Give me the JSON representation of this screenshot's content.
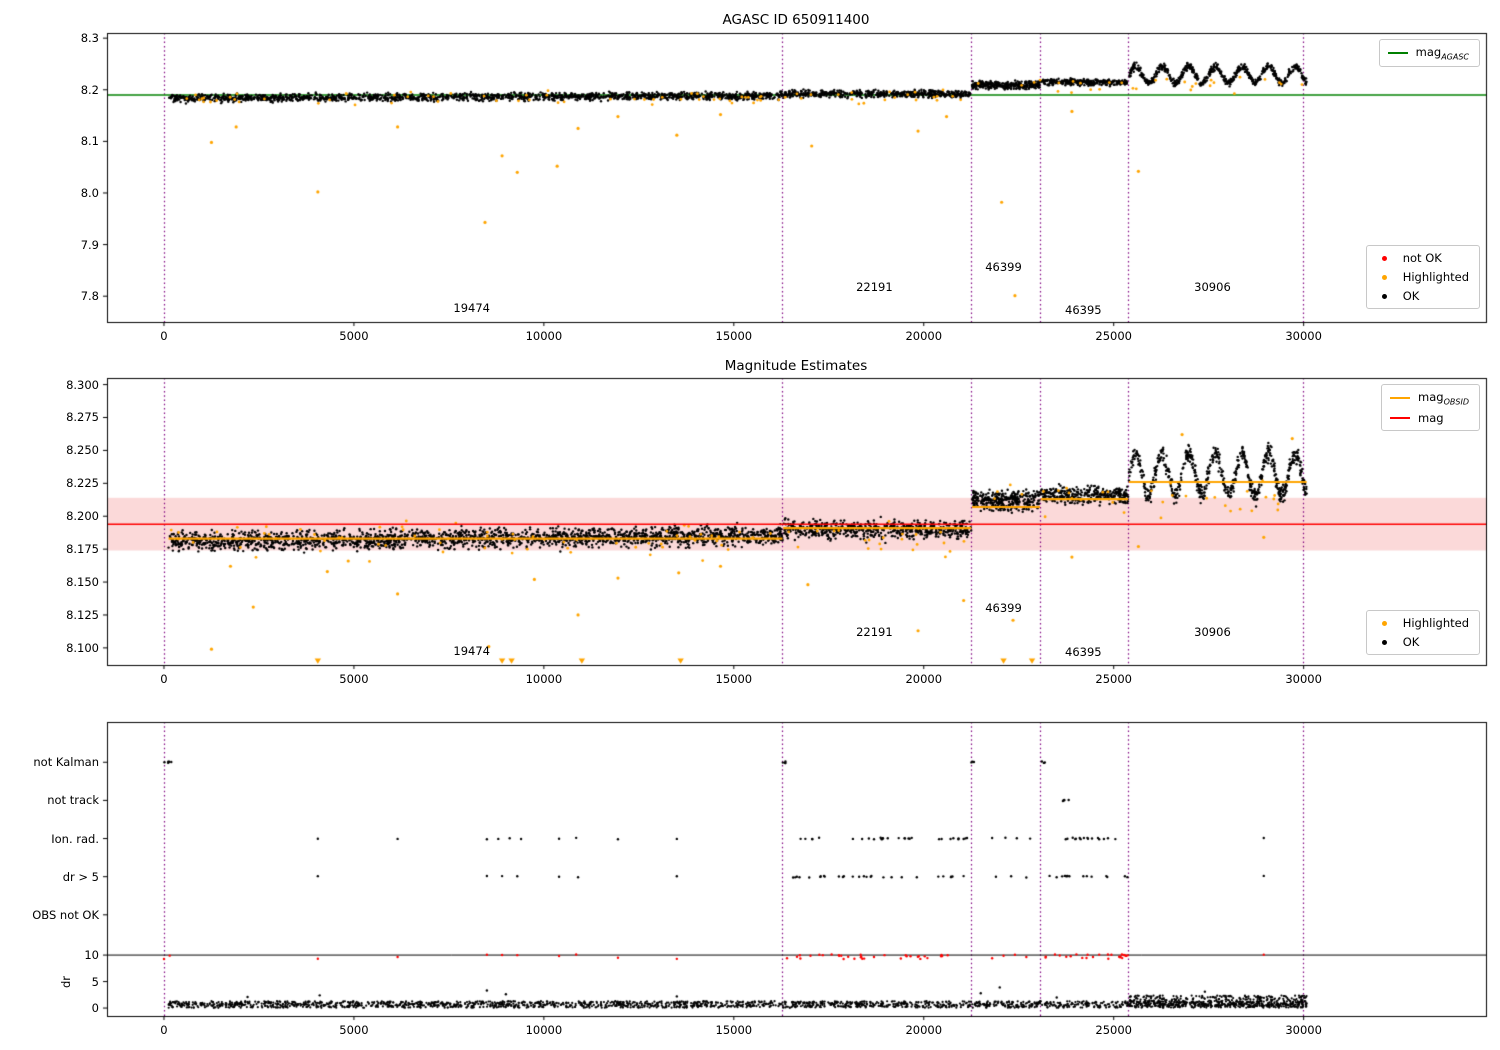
{
  "colors": {
    "ok": "#000000",
    "highlighted": "#ffa500",
    "not_ok": "#ff0000",
    "mag_agasc_line": "#008000",
    "mag_obsid_line": "#ffa500",
    "mag_line": "#ff0000",
    "mag_band": "#fbd9d9",
    "obsid_divider": "#800080",
    "axis": "#000000",
    "background": "#ffffff"
  },
  "chart_data": [
    {
      "id": "agasc-mags",
      "type": "scatter",
      "title": "AGASC ID 650911400",
      "xlim": [
        -1500,
        34800
      ],
      "ylim": [
        7.75,
        8.31
      ],
      "xticks": [
        {
          "v": 0,
          "label": "0"
        },
        {
          "v": 5000,
          "label": "5000"
        },
        {
          "v": 10000,
          "label": "10000"
        },
        {
          "v": 15000,
          "label": "15000"
        },
        {
          "v": 20000,
          "label": "20000"
        },
        {
          "v": 25000,
          "label": "25000"
        },
        {
          "v": 30000,
          "label": "30000"
        }
      ],
      "yticks": [
        {
          "v": 7.8,
          "label": "7.8"
        },
        {
          "v": 7.9,
          "label": "7.9"
        },
        {
          "v": 8.0,
          "label": "8.0"
        },
        {
          "v": 8.1,
          "label": "8.1"
        },
        {
          "v": 8.2,
          "label": "8.2"
        },
        {
          "v": 8.3,
          "label": "8.3"
        }
      ],
      "mag_agasc": 8.19,
      "obsid_dividers": [
        0,
        16280,
        21250,
        23060,
        25380,
        29980
      ],
      "obsid_labels": [
        {
          "text": "19474",
          "x": 8100,
          "y": 7.778
        },
        {
          "text": "22191",
          "x": 18700,
          "y": 7.818
        },
        {
          "text": "46399",
          "x": 22100,
          "y": 7.857
        },
        {
          "text": "46395",
          "x": 24200,
          "y": 7.773
        },
        {
          "text": "30906",
          "x": 27600,
          "y": 7.818
        }
      ],
      "ok_segments": [
        {
          "x0": 120,
          "x1": 16280,
          "mean": 8.186,
          "spread": 0.011,
          "trend": 0.005,
          "n": 1600
        },
        {
          "x0": 16300,
          "x1": 21250,
          "mean": 8.192,
          "spread": 0.01,
          "n": 520
        },
        {
          "x0": 21270,
          "x1": 23060,
          "mean": 8.209,
          "spread": 0.011,
          "n": 300
        },
        {
          "x0": 23080,
          "x1": 25380,
          "mean": 8.215,
          "spread": 0.009,
          "n": 300
        },
        {
          "x0": 25400,
          "x1": 30080,
          "mean": 8.229,
          "spread": 0.01,
          "wave_amp": 0.016,
          "wave_period": 700,
          "n": 620
        }
      ],
      "highlighted_band": [
        {
          "x0": 120,
          "x1": 21250,
          "mean": 8.185,
          "spread": 0.02,
          "n": 80
        },
        {
          "x0": 21270,
          "x1": 30080,
          "mean": 8.21,
          "spread": 0.022,
          "n": 30
        }
      ],
      "highlighted_outliers": [
        [
          1250,
          8.098
        ],
        [
          1900,
          8.128
        ],
        [
          4050,
          8.002
        ],
        [
          6150,
          8.128
        ],
        [
          8450,
          7.943
        ],
        [
          8900,
          8.072
        ],
        [
          9300,
          8.04
        ],
        [
          10350,
          8.052
        ],
        [
          10900,
          8.125
        ],
        [
          11950,
          8.148
        ],
        [
          13500,
          8.112
        ],
        [
          14650,
          8.152
        ],
        [
          17050,
          8.091
        ],
        [
          19850,
          8.12
        ],
        [
          20600,
          8.148
        ],
        [
          22050,
          7.982
        ],
        [
          22400,
          7.801
        ],
        [
          23900,
          8.158
        ],
        [
          25650,
          8.042
        ]
      ],
      "legend_top": [
        {
          "kind": "line",
          "color": "#008000",
          "label_main": "mag",
          "label_sub": "AGASC"
        }
      ],
      "legend_bottom": [
        {
          "kind": "marker",
          "color": "#ff0000",
          "label": "not OK"
        },
        {
          "kind": "marker",
          "color": "#ffa500",
          "label": "Highlighted"
        },
        {
          "kind": "marker",
          "color": "#000000",
          "label": "OK"
        }
      ]
    },
    {
      "id": "mag-estimates",
      "type": "scatter",
      "title": "Magnitude Estimates",
      "xlim": [
        -1500,
        34800
      ],
      "ylim": [
        8.087,
        8.305
      ],
      "xticks": [
        {
          "v": 0,
          "label": "0"
        },
        {
          "v": 5000,
          "label": "5000"
        },
        {
          "v": 10000,
          "label": "10000"
        },
        {
          "v": 15000,
          "label": "15000"
        },
        {
          "v": 20000,
          "label": "20000"
        },
        {
          "v": 25000,
          "label": "25000"
        },
        {
          "v": 30000,
          "label": "30000"
        }
      ],
      "yticks": [
        {
          "v": 8.1,
          "label": "8.100"
        },
        {
          "v": 8.125,
          "label": "8.125"
        },
        {
          "v": 8.15,
          "label": "8.150"
        },
        {
          "v": 8.175,
          "label": "8.175"
        },
        {
          "v": 8.2,
          "label": "8.200"
        },
        {
          "v": 8.225,
          "label": "8.225"
        },
        {
          "v": 8.25,
          "label": "8.250"
        },
        {
          "v": 8.275,
          "label": "8.275"
        },
        {
          "v": 8.3,
          "label": "8.300"
        }
      ],
      "mag": 8.194,
      "mag_band": [
        8.174,
        8.214
      ],
      "obsid_dividers": [
        0,
        16280,
        21250,
        23060,
        25380,
        29980
      ],
      "obsid_labels": [
        {
          "text": "19474",
          "x": 8100,
          "y": 8.098
        },
        {
          "text": "22191",
          "x": 18700,
          "y": 8.112
        },
        {
          "text": "46399",
          "x": 22100,
          "y": 8.13
        },
        {
          "text": "46395",
          "x": 24200,
          "y": 8.097
        },
        {
          "text": "30906",
          "x": 27600,
          "y": 8.112
        }
      ],
      "ok_segments": [
        {
          "x0": 120,
          "x1": 16280,
          "mean": 8.183,
          "spread": 0.011,
          "trend": 0.005,
          "n": 1900
        },
        {
          "x0": 16300,
          "x1": 21250,
          "mean": 8.19,
          "spread": 0.011,
          "n": 560
        },
        {
          "x0": 21270,
          "x1": 23060,
          "mean": 8.212,
          "spread": 0.011,
          "n": 320
        },
        {
          "x0": 23080,
          "x1": 25380,
          "mean": 8.216,
          "spread": 0.01,
          "n": 320
        },
        {
          "x0": 25400,
          "x1": 30080,
          "mean": 8.232,
          "spread": 0.01,
          "wave_amp": 0.016,
          "wave_period": 700,
          "n": 650
        }
      ],
      "mag_obsid_segments": [
        {
          "x0": 120,
          "x1": 16280,
          "value": 8.183
        },
        {
          "x0": 16300,
          "x1": 21250,
          "value": 8.191
        },
        {
          "x0": 21270,
          "x1": 23060,
          "value": 8.207
        },
        {
          "x0": 23080,
          "x1": 25380,
          "value": 8.213
        },
        {
          "x0": 25400,
          "x1": 30080,
          "value": 8.226
        }
      ],
      "highlighted_band": [
        {
          "x0": 120,
          "x1": 21250,
          "mean": 8.183,
          "spread": 0.02,
          "n": 90
        },
        {
          "x0": 21270,
          "x1": 30080,
          "mean": 8.215,
          "spread": 0.025,
          "n": 35
        }
      ],
      "highlighted_outliers": [
        [
          1250,
          8.099
        ],
        [
          1750,
          8.162
        ],
        [
          2350,
          8.131
        ],
        [
          4300,
          8.158
        ],
        [
          4850,
          8.166
        ],
        [
          6150,
          8.141
        ],
        [
          8550,
          8.101
        ],
        [
          9750,
          8.152
        ],
        [
          10900,
          8.125
        ],
        [
          11950,
          8.153
        ],
        [
          13550,
          8.157
        ],
        [
          14650,
          8.162
        ],
        [
          16950,
          8.148
        ],
        [
          19850,
          8.113
        ],
        [
          21050,
          8.136
        ],
        [
          22350,
          8.121
        ],
        [
          23900,
          8.169
        ],
        [
          25650,
          8.177
        ],
        [
          26800,
          8.262
        ],
        [
          28950,
          8.184
        ],
        [
          29700,
          8.259
        ]
      ],
      "clipped_low_x": [
        4050,
        8900,
        9150,
        11000,
        13600,
        22100,
        22850
      ],
      "legend_top": [
        {
          "kind": "line",
          "color": "#ffa500",
          "label_main": "mag",
          "label_sub": "OBSID"
        },
        {
          "kind": "line",
          "color": "#ff0000",
          "label_main": "mag",
          "label_sub": ""
        }
      ],
      "legend_bottom": [
        {
          "kind": "marker",
          "color": "#ffa500",
          "label": "Highlighted"
        },
        {
          "kind": "marker",
          "color": "#000000",
          "label": "OK"
        }
      ]
    },
    {
      "id": "flags-dr",
      "type": "scatter",
      "title": "",
      "xlim": [
        -1500,
        34800
      ],
      "ylim": [
        -1.5,
        54
      ],
      "xticks": [
        {
          "v": 0,
          "label": "0"
        },
        {
          "v": 5000,
          "label": "5000"
        },
        {
          "v": 10000,
          "label": "10000"
        },
        {
          "v": 15000,
          "label": "15000"
        },
        {
          "v": 20000,
          "label": "20000"
        },
        {
          "v": 25000,
          "label": "25000"
        },
        {
          "v": 30000,
          "label": "30000"
        }
      ],
      "yticks": [
        {
          "v": 0,
          "label": "0"
        },
        {
          "v": 5,
          "label": "5"
        },
        {
          "v": 10,
          "label": "10"
        }
      ],
      "ylabel": "dr",
      "dr_limit": 10,
      "obsid_dividers": [
        0,
        16280,
        21250,
        23060,
        25380,
        29980
      ],
      "flag_rows": [
        {
          "label": "not Kalman",
          "y": 46.4,
          "xs": [
            {
              "x0": 0,
              "x1": 260,
              "n": 6
            },
            {
              "x0": 16280,
              "x1": 16420,
              "n": 4
            },
            {
              "x0": 21250,
              "x1": 21350,
              "n": 3
            },
            {
              "x0": 23060,
              "x1": 23200,
              "n": 3
            }
          ]
        },
        {
          "label": "not track",
          "y": 39.2,
          "xs": [
            {
              "x0": 23650,
              "x1": 23900,
              "n": 5
            }
          ]
        },
        {
          "label": "Ion. rad.",
          "y": 32.0,
          "xs": [
            4050,
            6150,
            8500,
            8800,
            9100,
            9400,
            10400,
            10850,
            11950,
            13500,
            {
              "x0": 16450,
              "x1": 21200,
              "n": 30
            },
            21800,
            22150,
            22450,
            22800,
            {
              "x0": 23300,
              "x1": 25380,
              "n": 16
            },
            28950
          ]
        },
        {
          "label": "dr > 5",
          "y": 24.8,
          "xs": [
            4050,
            8500,
            8900,
            9300,
            10400,
            10900,
            13500,
            {
              "x0": 16450,
              "x1": 21200,
              "n": 28
            },
            21900,
            22300,
            22700,
            {
              "x0": 23300,
              "x1": 25380,
              "n": 15
            },
            28950
          ]
        },
        {
          "label": "OBS not OK",
          "y": 17.6,
          "xs": []
        }
      ],
      "not_ok_points": {
        "y": 10,
        "xs": [
          0,
          150,
          4050,
          6150,
          8500,
          8900,
          9300,
          10400,
          10850,
          11950,
          13500,
          {
            "x0": 16350,
            "x1": 21200,
            "n": 34
          },
          21800,
          22100,
          22400,
          22700,
          {
            "x0": 23150,
            "x1": 25380,
            "n": 24
          },
          28950
        ]
      },
      "dr_ok": [
        {
          "x0": 120,
          "x1": 30080,
          "y0": 0.05,
          "y1": 1.3,
          "n": 2100
        },
        {
          "x0": 25400,
          "x1": 30080,
          "y0": 0.2,
          "y1": 2.4,
          "n": 380
        }
      ],
      "dr_ok_extra": [
        [
          2200,
          2.1
        ],
        [
          4100,
          2.4
        ],
        [
          8500,
          3.3
        ],
        [
          9000,
          2.6
        ],
        [
          13500,
          2.2
        ],
        [
          21500,
          2.8
        ],
        [
          22000,
          3.9
        ],
        [
          23500,
          2.0
        ],
        [
          27400,
          3.1
        ]
      ]
    }
  ]
}
